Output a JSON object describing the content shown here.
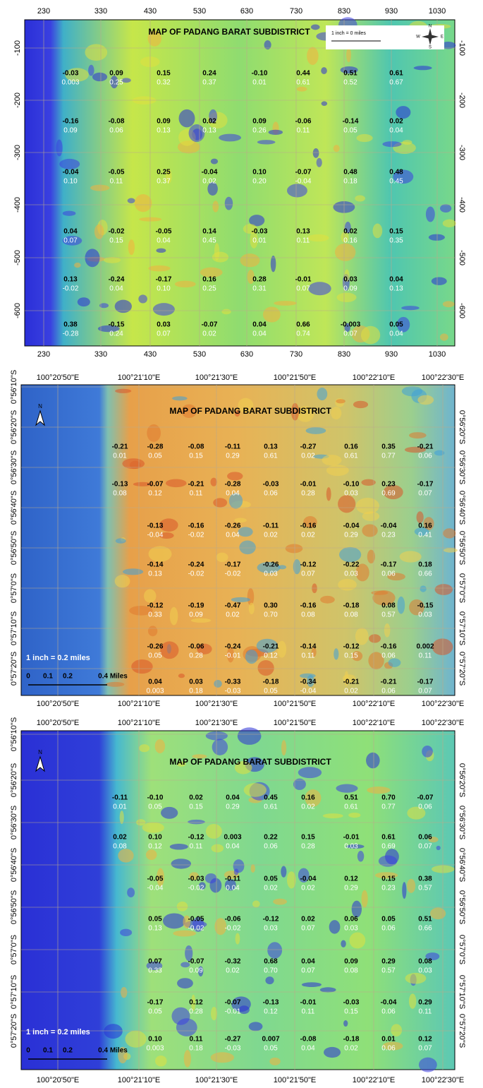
{
  "panels": [
    {
      "title": "MAP OF PADANG BARAT SUBDISTRICT",
      "scale_text": "1 inch = 0 miles",
      "compass": [
        "N",
        "W",
        "E",
        "S"
      ],
      "x_labels_top": [
        "230",
        "330",
        "430",
        "530",
        "630",
        "730",
        "830",
        "930",
        "1030"
      ],
      "x_labels_bottom": [
        "230",
        "330",
        "430",
        "530",
        "630",
        "730",
        "830",
        "930",
        "1030"
      ],
      "y_labels_left": [
        "-100",
        "-200",
        "-300",
        "-400",
        "-500",
        "-600"
      ],
      "y_labels_right": [
        "-100",
        "-200",
        "-300",
        "-400",
        "-500",
        "-600"
      ],
      "cells": [
        [
          [
            "-0.03",
            "0.003"
          ],
          [
            "0.09",
            "0.25"
          ],
          [
            "0.15",
            "0.32"
          ],
          [
            "0.24",
            "0.37"
          ],
          [
            "-0.10",
            "0.01"
          ],
          [
            "0.44",
            "0.61"
          ],
          [
            "0.51",
            "0.52"
          ],
          [
            "0.61",
            "0.67"
          ]
        ],
        [
          [
            "-0.16",
            "0.09"
          ],
          [
            "-0.08",
            "0.06"
          ],
          [
            "0.09",
            "0.13"
          ],
          [
            "0.02",
            "0.13"
          ],
          [
            "0.09",
            "0.26"
          ],
          [
            "-0.06",
            "0.11"
          ],
          [
            "-0.14",
            "0.05"
          ],
          [
            "0.02",
            "0.04"
          ]
        ],
        [
          [
            "-0.04",
            "0.10"
          ],
          [
            "-0.05",
            "0.11"
          ],
          [
            "0.25",
            "0.37"
          ],
          [
            "-0.04",
            "0.02"
          ],
          [
            "0.10",
            "0.20"
          ],
          [
            "-0.07",
            "-0.04"
          ],
          [
            "0.48",
            "0.18"
          ],
          [
            "0.48",
            "0.45"
          ]
        ],
        [
          [
            "0.04",
            "0.07"
          ],
          [
            "-0.02",
            "0.15"
          ],
          [
            "-0.05",
            "0.04"
          ],
          [
            "0.14",
            "0.45"
          ],
          [
            "-0.03",
            "0.01"
          ],
          [
            "0.13",
            "0.11"
          ],
          [
            "0.02",
            "0.16"
          ],
          [
            "0.15",
            "0.35"
          ]
        ],
        [
          [
            "0.13",
            "-0.02"
          ],
          [
            "-0.24",
            "0.04"
          ],
          [
            "-0.17",
            "0.10"
          ],
          [
            "0.16",
            "0.25"
          ],
          [
            "0.28",
            "0.31"
          ],
          [
            "-0.01",
            "0.07"
          ],
          [
            "0.03",
            "0.09"
          ],
          [
            "0.04",
            "0.13"
          ]
        ],
        [
          [
            "0.38",
            "-0.28"
          ],
          [
            "-0.15",
            "0.24"
          ],
          [
            "0.03",
            "0.07"
          ],
          [
            "-0.07",
            "0.02"
          ],
          [
            "0.04",
            "0.04"
          ],
          [
            "0.66",
            "0.74"
          ],
          [
            "-0.003",
            "0.07"
          ],
          [
            "0.05",
            "0.04"
          ]
        ]
      ]
    },
    {
      "title": "MAP OF PADANG BARAT SUBDISTRICT",
      "scale_text": "1 inch = 0.2 miles",
      "compass": [
        "N"
      ],
      "scale_bar": [
        "0",
        "0.1",
        "0.2",
        "0.4 Miles"
      ],
      "x_labels_top": [
        "100°20'50\"E",
        "100°21'10\"E",
        "100°21'30\"E",
        "100°21'50\"E",
        "100°22'10\"E",
        "100°22'30\"E"
      ],
      "x_labels_bottom": [
        "100°20'50\"E",
        "100°21'10\"E",
        "100°21'30\"E",
        "100°21'50\"E",
        "100°22'10\"E",
        "100°22'30\"E"
      ],
      "y_labels_left": [
        "0°56'10\"S",
        "0°56'20\"S",
        "0°56'30\"S",
        "0°56'40\"S",
        "0°56'50\"S",
        "0°57'0\"S",
        "0°57'10\"S",
        "0°57'20\"S"
      ],
      "y_labels_right": [
        "0°56'20\"S",
        "0°56'30\"S",
        "0°56'40\"S",
        "0°56'50\"S",
        "0°57'0\"S",
        "0°57'10\"S",
        "0°57'20\"S"
      ],
      "cells": [
        [
          [
            "-0.21",
            "0.01"
          ],
          [
            "-0.28",
            "0.05"
          ],
          [
            "-0.08",
            "0.15"
          ],
          [
            "-0.11",
            "0.29"
          ],
          [
            "0.13",
            "0.61"
          ],
          [
            "-0.27",
            "0.02"
          ],
          [
            "0.16",
            "0.61"
          ],
          [
            "0.35",
            "0.77"
          ],
          [
            "-0.21",
            "0.06"
          ]
        ],
        [
          [
            "-0.13",
            "0.08"
          ],
          [
            "-0.07",
            "0.12"
          ],
          [
            "-0.21",
            "0.11"
          ],
          [
            "-0.28",
            "0.04"
          ],
          [
            "-0.03",
            "0.06"
          ],
          [
            "-0.01",
            "0.28"
          ],
          [
            "-0.10",
            "0.03"
          ],
          [
            "0.23",
            "0.69"
          ],
          [
            "-0.17",
            "0.07"
          ]
        ],
        [
          null,
          [
            "-0.13",
            "-0.04"
          ],
          [
            "-0.16",
            "-0.02"
          ],
          [
            "-0.26",
            "0.04"
          ],
          [
            "-0.11",
            "0.02"
          ],
          [
            "-0.16",
            "0.02"
          ],
          [
            "-0.04",
            "0.29"
          ],
          [
            "-0.04",
            "0.23"
          ],
          [
            "0.16",
            "0.41"
          ]
        ],
        [
          null,
          [
            "-0.14",
            "0.13"
          ],
          [
            "-0.24",
            "-0.02"
          ],
          [
            "-0.17",
            "-0.02"
          ],
          [
            "-0.26",
            "0.03"
          ],
          [
            "-0.12",
            "0.07"
          ],
          [
            "-0.22",
            "0.03"
          ],
          [
            "-0.17",
            "0.06"
          ],
          [
            "0.18",
            "0.66"
          ]
        ],
        [
          null,
          [
            "-0.12",
            "0.33"
          ],
          [
            "-0.19",
            "0.09"
          ],
          [
            "-0.47",
            "0.02"
          ],
          [
            "0.30",
            "0.70"
          ],
          [
            "-0.16",
            "0.08"
          ],
          [
            "-0.18",
            "0.08"
          ],
          [
            "0.08",
            "0.57"
          ],
          [
            "-0.15",
            "0.03"
          ]
        ],
        [
          null,
          [
            "-0.26",
            "0.05"
          ],
          [
            "-0.06",
            "0.28"
          ],
          [
            "-0.24",
            "-0.01"
          ],
          [
            "-0.21",
            "0.12"
          ],
          [
            "-0.14",
            "0.11"
          ],
          [
            "-0.12",
            "0.15"
          ],
          [
            "-0.16",
            "0.06"
          ],
          [
            "0.002",
            "0.11"
          ]
        ],
        [
          null,
          [
            "0.04",
            "0.003"
          ],
          [
            "0.03",
            "0.18"
          ],
          [
            "-0.33",
            "-0.03"
          ],
          [
            "-0.18",
            "0.05"
          ],
          [
            "-0.34",
            "-0.04"
          ],
          [
            "-0.21",
            "0.02"
          ],
          [
            "-0.21",
            "0.06"
          ],
          [
            "-0.17",
            "0.07"
          ]
        ]
      ]
    },
    {
      "title": "MAP OF PADANG BARAT SUBDISTRICT",
      "scale_text": "1 inch = 0.2 miles",
      "compass": [
        "N"
      ],
      "scale_bar": [
        "0",
        "0.1",
        "0.2",
        "0.4 Miles"
      ],
      "x_labels_top": [
        "100°20'50\"E",
        "100°21'10\"E",
        "100°21'30\"E",
        "100°21'50\"E",
        "100°22'10\"E",
        "100°22'30\"E"
      ],
      "x_labels_bottom": [
        "100°20'50\"E",
        "100°21'10\"E",
        "100°21'30\"E",
        "100°21'50\"E",
        "100°22'10\"E",
        "100°22'30\"E"
      ],
      "y_labels_left": [
        "0°56'10\"S",
        "0°56'20\"S",
        "0°56'30\"S",
        "0°56'40\"S",
        "0°56'50\"S",
        "0°57'0\"S",
        "0°57'10\"S",
        "0°57'20\"S"
      ],
      "y_labels_right": [
        "0°56'20\"S",
        "0°56'30\"S",
        "0°56'40\"S",
        "0°56'50\"S",
        "0°57'0\"S",
        "0°57'10\"S",
        "0°57'20\"S"
      ],
      "cells": [
        [
          [
            "-0.11",
            "0.01"
          ],
          [
            "-0.10",
            "0.05"
          ],
          [
            "0.02",
            "0.15"
          ],
          [
            "0.04",
            "0.29"
          ],
          [
            "0.45",
            "0.61"
          ],
          [
            "0.16",
            "0.02"
          ],
          [
            "0.51",
            "0.61"
          ],
          [
            "0.70",
            "0.77"
          ],
          [
            "-0.07",
            "0.06"
          ]
        ],
        [
          [
            "0.02",
            "0.08"
          ],
          [
            "0.10",
            "0.12"
          ],
          [
            "-0.12",
            "0.11"
          ],
          [
            "0.003",
            "0.04"
          ],
          [
            "0.22",
            "0.06"
          ],
          [
            "0.15",
            "0.28"
          ],
          [
            "-0.01",
            "0.03"
          ],
          [
            "0.61",
            "0.69"
          ],
          [
            "0.06",
            "0.07"
          ]
        ],
        [
          null,
          [
            "-0.05",
            "-0.04"
          ],
          [
            "-0.03",
            "-0.02"
          ],
          [
            "-0.11",
            "0.04"
          ],
          [
            "0.05",
            "0.02"
          ],
          [
            "-0.04",
            "0.02"
          ],
          [
            "0.12",
            "0.29"
          ],
          [
            "0.15",
            "0.23"
          ],
          [
            "0.38",
            "0.57"
          ]
        ],
        [
          null,
          [
            "0.05",
            "0.13"
          ],
          [
            "-0.05",
            "-0.02"
          ],
          [
            "-0.06",
            "-0.02"
          ],
          [
            "-0.12",
            "0.03"
          ],
          [
            "0.02",
            "0.07"
          ],
          [
            "0.06",
            "0.03"
          ],
          [
            "0.05",
            "0.06"
          ],
          [
            "0.51",
            "0.66"
          ]
        ],
        [
          null,
          [
            "0.07",
            "0.33"
          ],
          [
            "-0.07",
            "0.09"
          ],
          [
            "-0.32",
            "0.02"
          ],
          [
            "0.68",
            "0.70"
          ],
          [
            "0.04",
            "0.07"
          ],
          [
            "0.09",
            "0.08"
          ],
          [
            "0.29",
            "0.57"
          ],
          [
            "0.08",
            "0.03"
          ]
        ],
        [
          null,
          [
            "-0.17",
            "0.05"
          ],
          [
            "0.12",
            "0.28"
          ],
          [
            "-0.07",
            "-0.01"
          ],
          [
            "-0.13",
            "0.12"
          ],
          [
            "-0.01",
            "0.11"
          ],
          [
            "-0.03",
            "0.15"
          ],
          [
            "-0.04",
            "0.06"
          ],
          [
            "0.29",
            "0.11"
          ]
        ],
        [
          null,
          [
            "0.10",
            "0.003"
          ],
          [
            "0.11",
            "0.18"
          ],
          [
            "-0.27",
            "-0.03"
          ],
          [
            "0.007",
            "0.05"
          ],
          [
            "-0.08",
            "0.04"
          ],
          [
            "-0.18",
            "0.02"
          ],
          [
            "0.01",
            "0.06"
          ],
          [
            "0.12",
            "0.07"
          ]
        ]
      ]
    }
  ]
}
